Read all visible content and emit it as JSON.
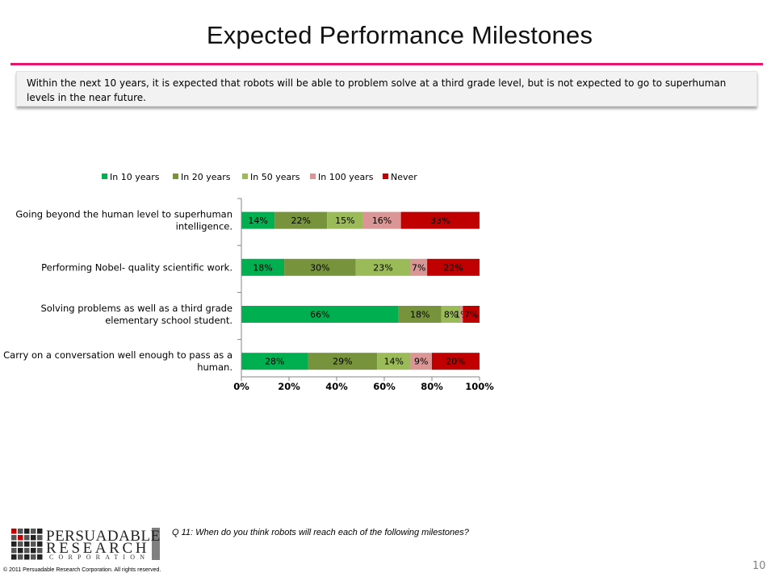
{
  "slide": {
    "title": "Expected  Performance Milestones",
    "callout": "Within the next 10 years, it is expected that robots will be able to problem solve at a third grade level, but is not expected to go to superhuman levels in the near future.",
    "question": "Q 11:  When do you think robots will reach each of the following milestones?",
    "page_number": "10",
    "copyright": "© 2011 Persuadable  Research Corporation.  All rights reserved.",
    "logo": {
      "line1": "PERSUADABLE",
      "line2": "RESEARCH",
      "line3": "CORPORATION"
    },
    "accent_color": "#e4156b"
  },
  "chart_data": {
    "type": "bar",
    "orientation": "horizontal",
    "stacking": "percent",
    "categories": [
      "Going beyond the human level to superhuman intelligence.",
      "Performing Nobel- quality scientific work.",
      "Solving problems as well as a third grade elementary school student.",
      "Carry on a conversation well enough to pass as a human."
    ],
    "series": [
      {
        "name": "In 10 years",
        "color": "#00b050",
        "values": [
          14,
          18,
          66,
          28
        ],
        "labels": [
          "14%",
          "18%",
          "66%",
          "28%"
        ]
      },
      {
        "name": "In 20 years",
        "color": "#77933c",
        "values": [
          22,
          30,
          18,
          29
        ],
        "labels": [
          "22%",
          "30%",
          "18%",
          "29%"
        ]
      },
      {
        "name": "In 50 years",
        "color": "#9bbb59",
        "values": [
          15,
          23,
          8,
          14
        ],
        "labels": [
          "15%",
          "23%",
          "8%",
          "14%"
        ]
      },
      {
        "name": "In 100 years",
        "color": "#d99694",
        "values": [
          16,
          7,
          1,
          9
        ],
        "labels": [
          "16%",
          "7%",
          "1%",
          "9%"
        ]
      },
      {
        "name": "Never",
        "color": "#c00000",
        "values": [
          33,
          22,
          7,
          20
        ],
        "labels": [
          "33%",
          "22%",
          "7%",
          "20%"
        ]
      }
    ],
    "x_ticks": [
      "0%",
      "20%",
      "40%",
      "60%",
      "80%",
      "100%"
    ],
    "xlim": [
      0,
      100
    ],
    "grid": false,
    "legend_position": "top",
    "title": "",
    "xlabel": "",
    "ylabel": ""
  }
}
